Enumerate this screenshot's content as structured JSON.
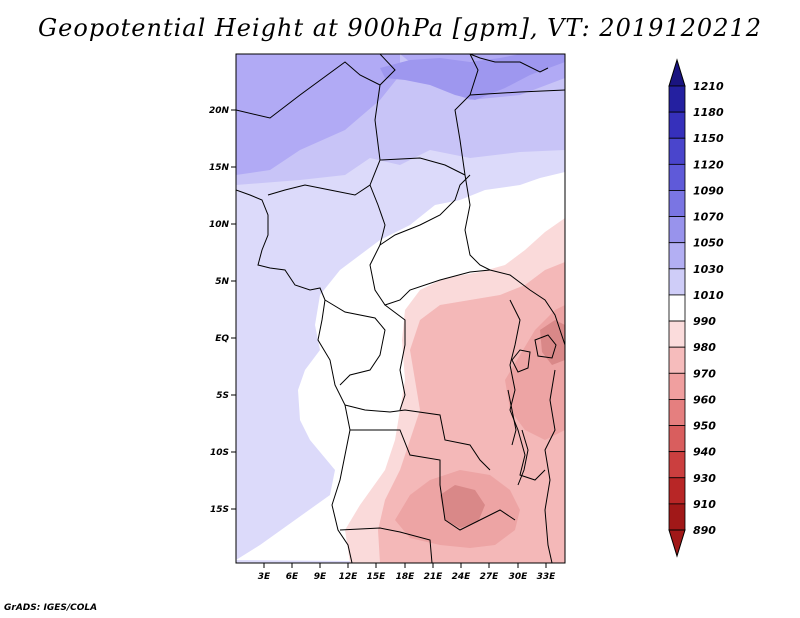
{
  "title": "Geopotential Height at 900hPa [gpm], VT: 2019120212",
  "credit": "GrADS: IGES/COLA",
  "map": {
    "variable": "Geopotential Height",
    "level": "900hPa",
    "units": "gpm",
    "valid_time": "2019120212",
    "lon_labels": [
      "3E",
      "6E",
      "9E",
      "12E",
      "15E",
      "18E",
      "21E",
      "24E",
      "27E",
      "30E",
      "33E"
    ],
    "lat_labels": [
      "20N",
      "15N",
      "10N",
      "5N",
      "EQ",
      "5S",
      "10S",
      "15S"
    ],
    "palette": {
      "purple_dark": "#9e97ef",
      "purple": "#b1aaf5",
      "lavender": "#c8c4f7",
      "pale": "#dcdafa",
      "white": "#ffffff",
      "pink_light": "#fadada",
      "pink": "#f4b8b8",
      "pink_mid": "#eda4a4",
      "pink_dark": "#d98888"
    }
  },
  "colorbar": {
    "labels": [
      "1210",
      "1180",
      "1150",
      "1120",
      "1090",
      "1070",
      "1050",
      "1030",
      "1010",
      "990",
      "980",
      "970",
      "960",
      "950",
      "940",
      "930",
      "910",
      "890"
    ],
    "colors": [
      "#1a1480",
      "#2420a0",
      "#3630bb",
      "#4a45cc",
      "#5f5ad9",
      "#7a75e3",
      "#9893ec",
      "#b3aff3",
      "#cfcdf8",
      "#ffffff",
      "#fbdcdc",
      "#f6bcbc",
      "#f09f9f",
      "#e57f7f",
      "#d95e5e",
      "#cb3f3f",
      "#b82626",
      "#a11818"
    ]
  }
}
